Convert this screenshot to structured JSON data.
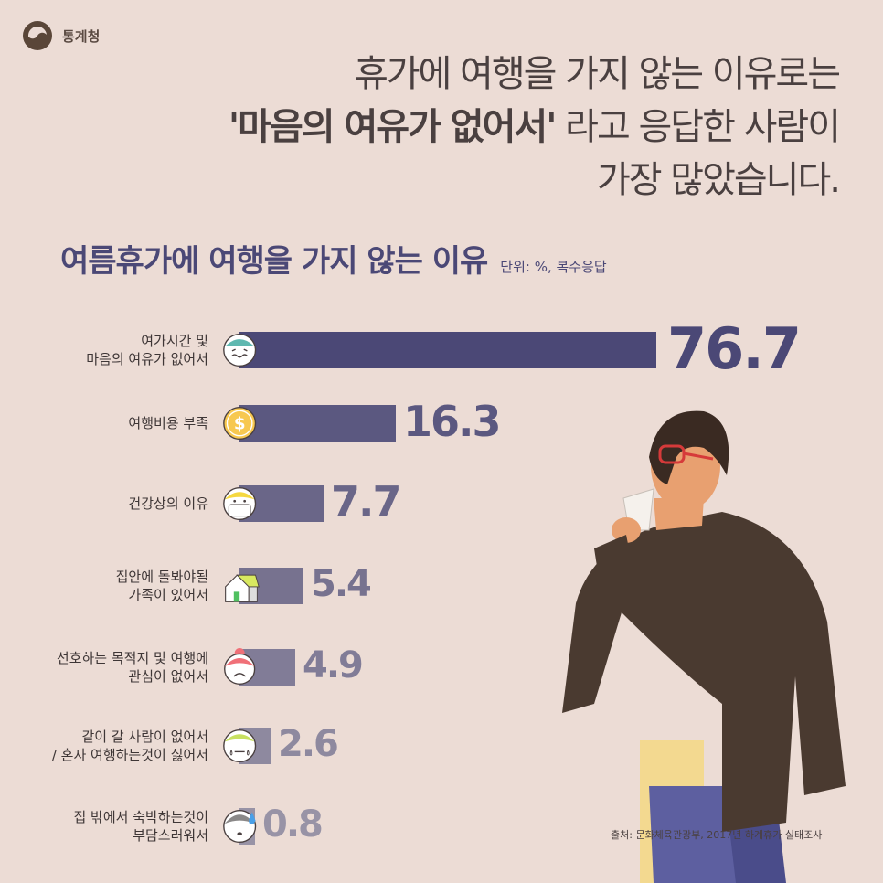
{
  "brand": {
    "name": "통계청",
    "logo_color": "#5a4638"
  },
  "headline": {
    "line1": "휴가에 여행을 가지 않는 이유로는",
    "line2_bold": "'마음의 여유가 없어서'",
    "line2_rest": " 라고 응답한 사람이",
    "line3": "가장 많았습니다."
  },
  "source": "출처: 문화체육관광부, 2017년 하계휴가 실태조사",
  "colors": {
    "background": "#ecdcd5",
    "bar_dark": "#4b4876",
    "bar_light": "#9893a6"
  },
  "chart_data": {
    "type": "bar",
    "orientation": "horizontal",
    "title": "여름휴가에 여행을 가지 않는 이유",
    "unit": "단위: %, 복수응답",
    "categories": [
      "여가시간 및\n마음의 여유가 없어서",
      "여행비용 부족",
      "건강상의 이유",
      "집안에 돌봐야될\n가족이 있어서",
      "선호하는 목적지 및 여행에\n관심이 없어서",
      "같이 갈 사람이 없어서\n/ 혼자 여행하는것이 싫어서",
      "집 밖에서 숙박하는것이\n부담스러워서"
    ],
    "values": [
      76.7,
      16.3,
      7.7,
      5.4,
      4.9,
      2.6,
      0.8
    ],
    "value_labels": [
      "76.7",
      "16.3",
      "7.7",
      "5.4",
      "4.9",
      "2.6",
      "0.8"
    ],
    "icons": [
      "worried-face-rain-icon",
      "dollar-coin-icon",
      "masked-face-icon",
      "house-icon",
      "sad-face-beanie-icon",
      "crying-face-icon",
      "sweating-face-icon"
    ],
    "bar_colors": [
      "#4b4876",
      "#5b5880",
      "#6a6688",
      "#77728f",
      "#817c97",
      "#8e899f",
      "#9893a6"
    ],
    "grid": false
  }
}
